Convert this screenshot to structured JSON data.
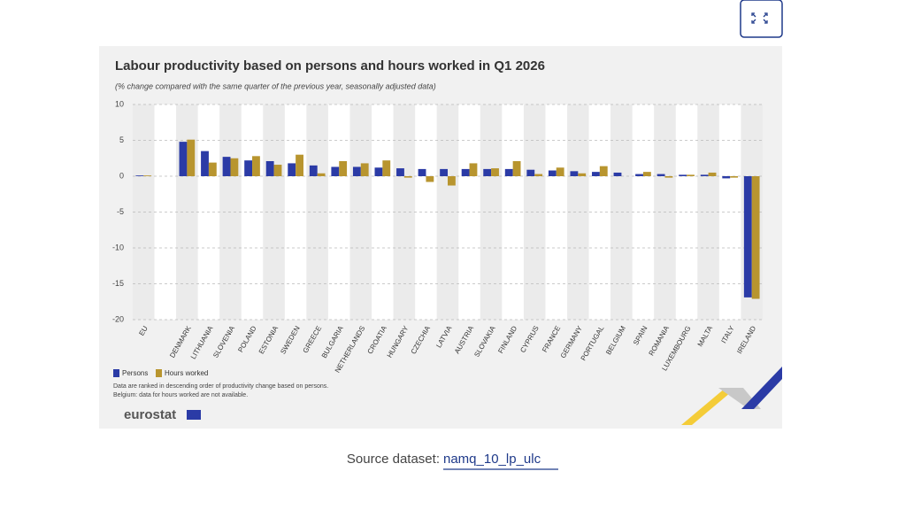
{
  "chart_data": {
    "type": "bar",
    "title": "Labour productivity based on persons and hours worked in Q1 2026",
    "subtitle": "(% change compared with the same quarter of the previous year, seasonally adjusted data)",
    "categories": [
      "EU",
      null,
      "DENMARK",
      "LITHUANIA",
      "SLOVENIA",
      "POLAND",
      "ESTONIA",
      "SWEDEN",
      "GREECE",
      "BULGARIA",
      "NETHERLANDS",
      "CROATIA",
      "HUNGARY",
      "CZECHIA",
      "LATVIA",
      "AUSTRIA",
      "SLOVAKIA",
      "FINLAND",
      "CYPRUS",
      "FRANCE",
      "GERMANY",
      "PORTUGAL",
      "BELGIUM",
      "SPAIN",
      "ROMANIA",
      "LUXEMBOURG",
      "MALTA",
      "ITALY",
      "IRELAND"
    ],
    "series": [
      {
        "name": "Persons",
        "color": "#2b3ba6",
        "values": [
          0.1,
          null,
          4.8,
          3.5,
          2.7,
          2.2,
          2.1,
          1.8,
          1.5,
          1.3,
          1.3,
          1.2,
          1.1,
          1.0,
          1.0,
          1.0,
          1.0,
          1.0,
          0.9,
          0.8,
          0.7,
          0.6,
          0.5,
          0.3,
          0.3,
          0.2,
          0.2,
          -0.3,
          -16.9
        ]
      },
      {
        "name": "Hours worked",
        "color": "#b8952f",
        "values": [
          0.1,
          null,
          5.1,
          1.9,
          2.5,
          2.8,
          1.6,
          3.0,
          0.4,
          2.1,
          1.8,
          2.2,
          -0.2,
          -0.8,
          -1.3,
          1.8,
          1.1,
          2.1,
          0.3,
          1.2,
          0.4,
          1.4,
          null,
          0.6,
          -0.2,
          0.2,
          0.5,
          -0.2,
          -17.1
        ]
      }
    ],
    "ylim": [
      -20,
      10
    ],
    "yticks": [
      -20,
      -15,
      -10,
      -5,
      0,
      5,
      10
    ],
    "grid": true,
    "notes": [
      "Data are ranked in descending order of productivity change based on persons.",
      "Belgium: data for hours worked are not available."
    ],
    "brand": "eurostat"
  },
  "source": {
    "label": "Source dataset:",
    "link": "namq_10_lp_ulc"
  }
}
